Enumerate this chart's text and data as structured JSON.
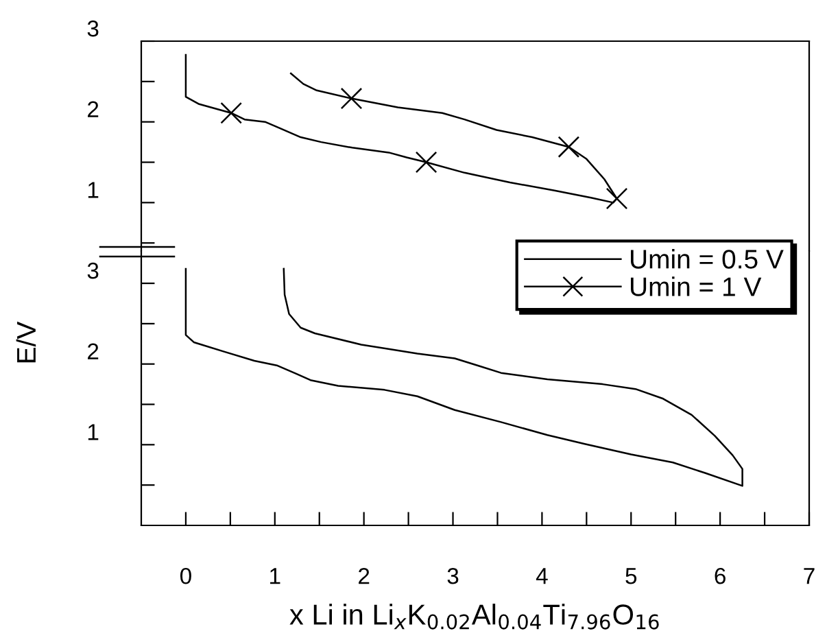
{
  "chart_data": [
    {
      "type": "line",
      "xlim": [
        -0.5,
        7
      ],
      "ylim": [
        0.4,
        3
      ],
      "yticks": [
        {
          "value": 0.5,
          "label": null
        },
        1,
        {
          "value": 1.5,
          "label": null
        },
        2,
        {
          "value": 2.5,
          "label": null
        },
        3
      ],
      "tick_labels": "y",
      "grid": false,
      "series": [
        {
          "name": "Umin = 1 V",
          "color": "#000000",
          "marker": "none",
          "x": [
            0,
            0,
            0.15,
            0.51,
            0.66,
            0.89,
            1.06,
            1.29,
            1.52,
            1.87,
            2.28,
            2.48,
            2.7,
            3.13,
            3.64,
            4.14,
            4.55,
            4.8,
            4.84,
            4.7,
            4.5,
            4.3,
            3.89,
            3.49,
            3.13,
            2.88,
            2.38,
            1.86,
            1.47,
            1.32,
            1.18
          ],
          "values": [
            2.83,
            2.31,
            2.22,
            2.11,
            2.03,
            2.0,
            1.92,
            1.81,
            1.75,
            1.68,
            1.62,
            1.56,
            1.5,
            1.37,
            1.25,
            1.15,
            1.06,
            1.0,
            1.05,
            1.29,
            1.54,
            1.69,
            1.81,
            1.9,
            2.03,
            2.11,
            2.18,
            2.29,
            2.39,
            2.47,
            2.6
          ]
        },
        {
          "type": "scatter",
          "color": "#000000",
          "marker": "cross",
          "x": [
            0.51,
            2.7,
            4.84,
            4.3,
            1.86
          ],
          "values": [
            2.11,
            1.5,
            1.05,
            1.69,
            2.29
          ]
        }
      ]
    },
    {
      "type": "line",
      "xlim": [
        -0.5,
        7
      ],
      "xticks": [
        0,
        {
          "value": 0.5,
          "label": null
        },
        1,
        {
          "value": 1.5,
          "label": null
        },
        2,
        {
          "value": 2.5,
          "label": null
        },
        3,
        {
          "value": 3.5,
          "label": null
        },
        4,
        {
          "value": 4.5,
          "label": null
        },
        5,
        {
          "value": 5.5,
          "label": null
        },
        6,
        {
          "value": 6.5,
          "label": null
        },
        7
      ],
      "ylim": [
        0,
        3.4
      ],
      "yticks": [
        {
          "value": 0.5,
          "label": null
        },
        1,
        {
          "value": 1.5,
          "label": null
        },
        2,
        {
          "value": 2.5,
          "label": null
        },
        3
      ],
      "grid": false,
      "legend": "top right",
      "xlabel": "x Li in Li$_{x}$K$_{0.02}$Al$_{0.04}$Ti$_{7.96}$O$_{16}$",
      "ylabel": "E/V",
      "series": [
        {
          "name": "Umin = 0.5 V",
          "color": "#000000",
          "marker": "none",
          "x": [
            0,
            0,
            0.09,
            0.41,
            0.77,
            1.03,
            1.24,
            1.4,
            1.71,
            2.23,
            2.6,
            3.02,
            3.54,
            4.06,
            4.48,
            5.0,
            5.47,
            5.83,
            6.25,
            6.25,
            6.14,
            5.94,
            5.68,
            5.36,
            5.05,
            4.68,
            4.06,
            3.54,
            3.28,
            3.02,
            2.6,
            1.97,
            1.45,
            1.29,
            1.16,
            1.11,
            1.1
          ],
          "values": [
            3.18,
            2.36,
            2.27,
            2.16,
            2.04,
            1.98,
            1.88,
            1.8,
            1.73,
            1.68,
            1.6,
            1.43,
            1.28,
            1.12,
            1.01,
            0.88,
            0.78,
            0.65,
            0.49,
            0.7,
            0.87,
            1.11,
            1.37,
            1.57,
            1.69,
            1.75,
            1.81,
            1.89,
            1.98,
            2.07,
            2.13,
            2.24,
            2.38,
            2.45,
            2.62,
            2.86,
            3.18
          ]
        }
      ]
    }
  ]
}
